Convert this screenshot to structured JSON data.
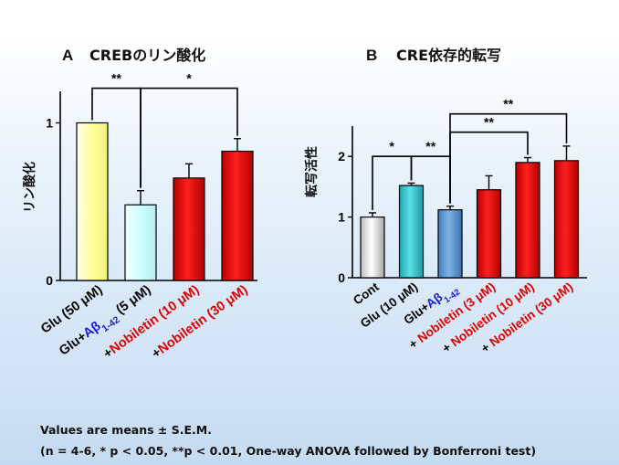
{
  "chart_data": [
    {
      "type": "bar",
      "panel_label": "A",
      "title": "CREBのリン酸化",
      "ylabel": "リン酸化",
      "ylim": [
        0,
        1.2
      ],
      "yticks": [
        "0",
        "1"
      ],
      "categories": [
        "Glu (50 μM)",
        "Glu+Aβ1-42 (5 μM)",
        "+Nobiletin (10 μM)",
        "+Nobiletin (30 μM)"
      ],
      "category_labels": [
        {
          "parts": [
            {
              "text": "Glu (50 μM)",
              "color": "#000000"
            }
          ]
        },
        {
          "parts": [
            {
              "text": "Glu+",
              "color": "#000000"
            },
            {
              "text": "Aβ",
              "color": "#1a1adb"
            },
            {
              "text": "1-42",
              "color": "#1a1adb",
              "sub": true
            },
            {
              "text": " (5 μM)",
              "color": "#000000"
            }
          ]
        },
        {
          "parts": [
            {
              "text": "+",
              "color": "#000000"
            },
            {
              "text": "Nobiletin (10 μM)",
              "color": "#e00000"
            }
          ]
        },
        {
          "parts": [
            {
              "text": "+",
              "color": "#000000"
            },
            {
              "text": "Nobiletin (30 μM)",
              "color": "#e00000"
            }
          ]
        }
      ],
      "values": [
        1.0,
        0.48,
        0.65,
        0.82
      ],
      "errors": [
        0.0,
        0.09,
        0.09,
        0.08
      ],
      "colors": [
        "#ffff99",
        "#ccffff",
        "#ff0000",
        "#ff0000"
      ],
      "significance": [
        {
          "from": 0,
          "to": 1,
          "label": "**",
          "level": 1.22
        },
        {
          "from": 1,
          "to": 3,
          "label": "*",
          "level": 1.22
        }
      ]
    },
    {
      "type": "bar",
      "panel_label": "B",
      "title": "CRE依存的転写",
      "ylabel": "転写活性",
      "ylim": [
        0,
        2.5
      ],
      "yticks": [
        "0",
        "1",
        "2"
      ],
      "categories": [
        "Cont",
        "Glu (10 μM)",
        "Glu+Aβ1-42",
        "+ Nobiletin (3 μM)",
        "+ Nobiletin (10 μM)",
        "+ Nobiletin (30 μM)"
      ],
      "category_labels": [
        {
          "parts": [
            {
              "text": "Cont",
              "color": "#000000"
            }
          ]
        },
        {
          "parts": [
            {
              "text": "Glu (10 μM)",
              "color": "#000000"
            }
          ]
        },
        {
          "parts": [
            {
              "text": "Glu+",
              "color": "#000000"
            },
            {
              "text": "Aβ",
              "color": "#1a1adb"
            },
            {
              "text": "1-42",
              "color": "#1a1adb",
              "sub": true
            }
          ]
        },
        {
          "parts": [
            {
              "text": "+ ",
              "color": "#000000"
            },
            {
              "text": "Nobiletin (3 μM)",
              "color": "#e00000"
            }
          ]
        },
        {
          "parts": [
            {
              "text": "+ ",
              "color": "#000000"
            },
            {
              "text": "Nobiletin (10 μM)",
              "color": "#e00000"
            }
          ]
        },
        {
          "parts": [
            {
              "text": "+ ",
              "color": "#000000"
            },
            {
              "text": "Nobiletin (30 μM)",
              "color": "#e00000"
            }
          ]
        }
      ],
      "values": [
        1.0,
        1.52,
        1.12,
        1.45,
        1.9,
        1.93
      ],
      "errors": [
        0.07,
        0.04,
        0.06,
        0.23,
        0.08,
        0.24
      ],
      "colors": [
        "#d9d9d9",
        "#33cccc",
        "#5b9bd5",
        "#ff0000",
        "#ff0000",
        "#ff0000"
      ],
      "significance": [
        {
          "from": 0,
          "to": 1,
          "label": "*",
          "level": 2.0
        },
        {
          "from": 1,
          "to": 2,
          "label": "**",
          "level": 2.0
        },
        {
          "from": 2,
          "to": 4,
          "label": "**",
          "level": 2.4
        },
        {
          "from": 2,
          "to": 5,
          "label": "**",
          "level": 2.7
        }
      ]
    }
  ],
  "footnote": {
    "line1": "Values are means ± S.E.M.",
    "line2": "(n = 4-6, * p < 0.05,   **p < 0.01, One-way ANOVA followed by Bonferroni  test)"
  }
}
